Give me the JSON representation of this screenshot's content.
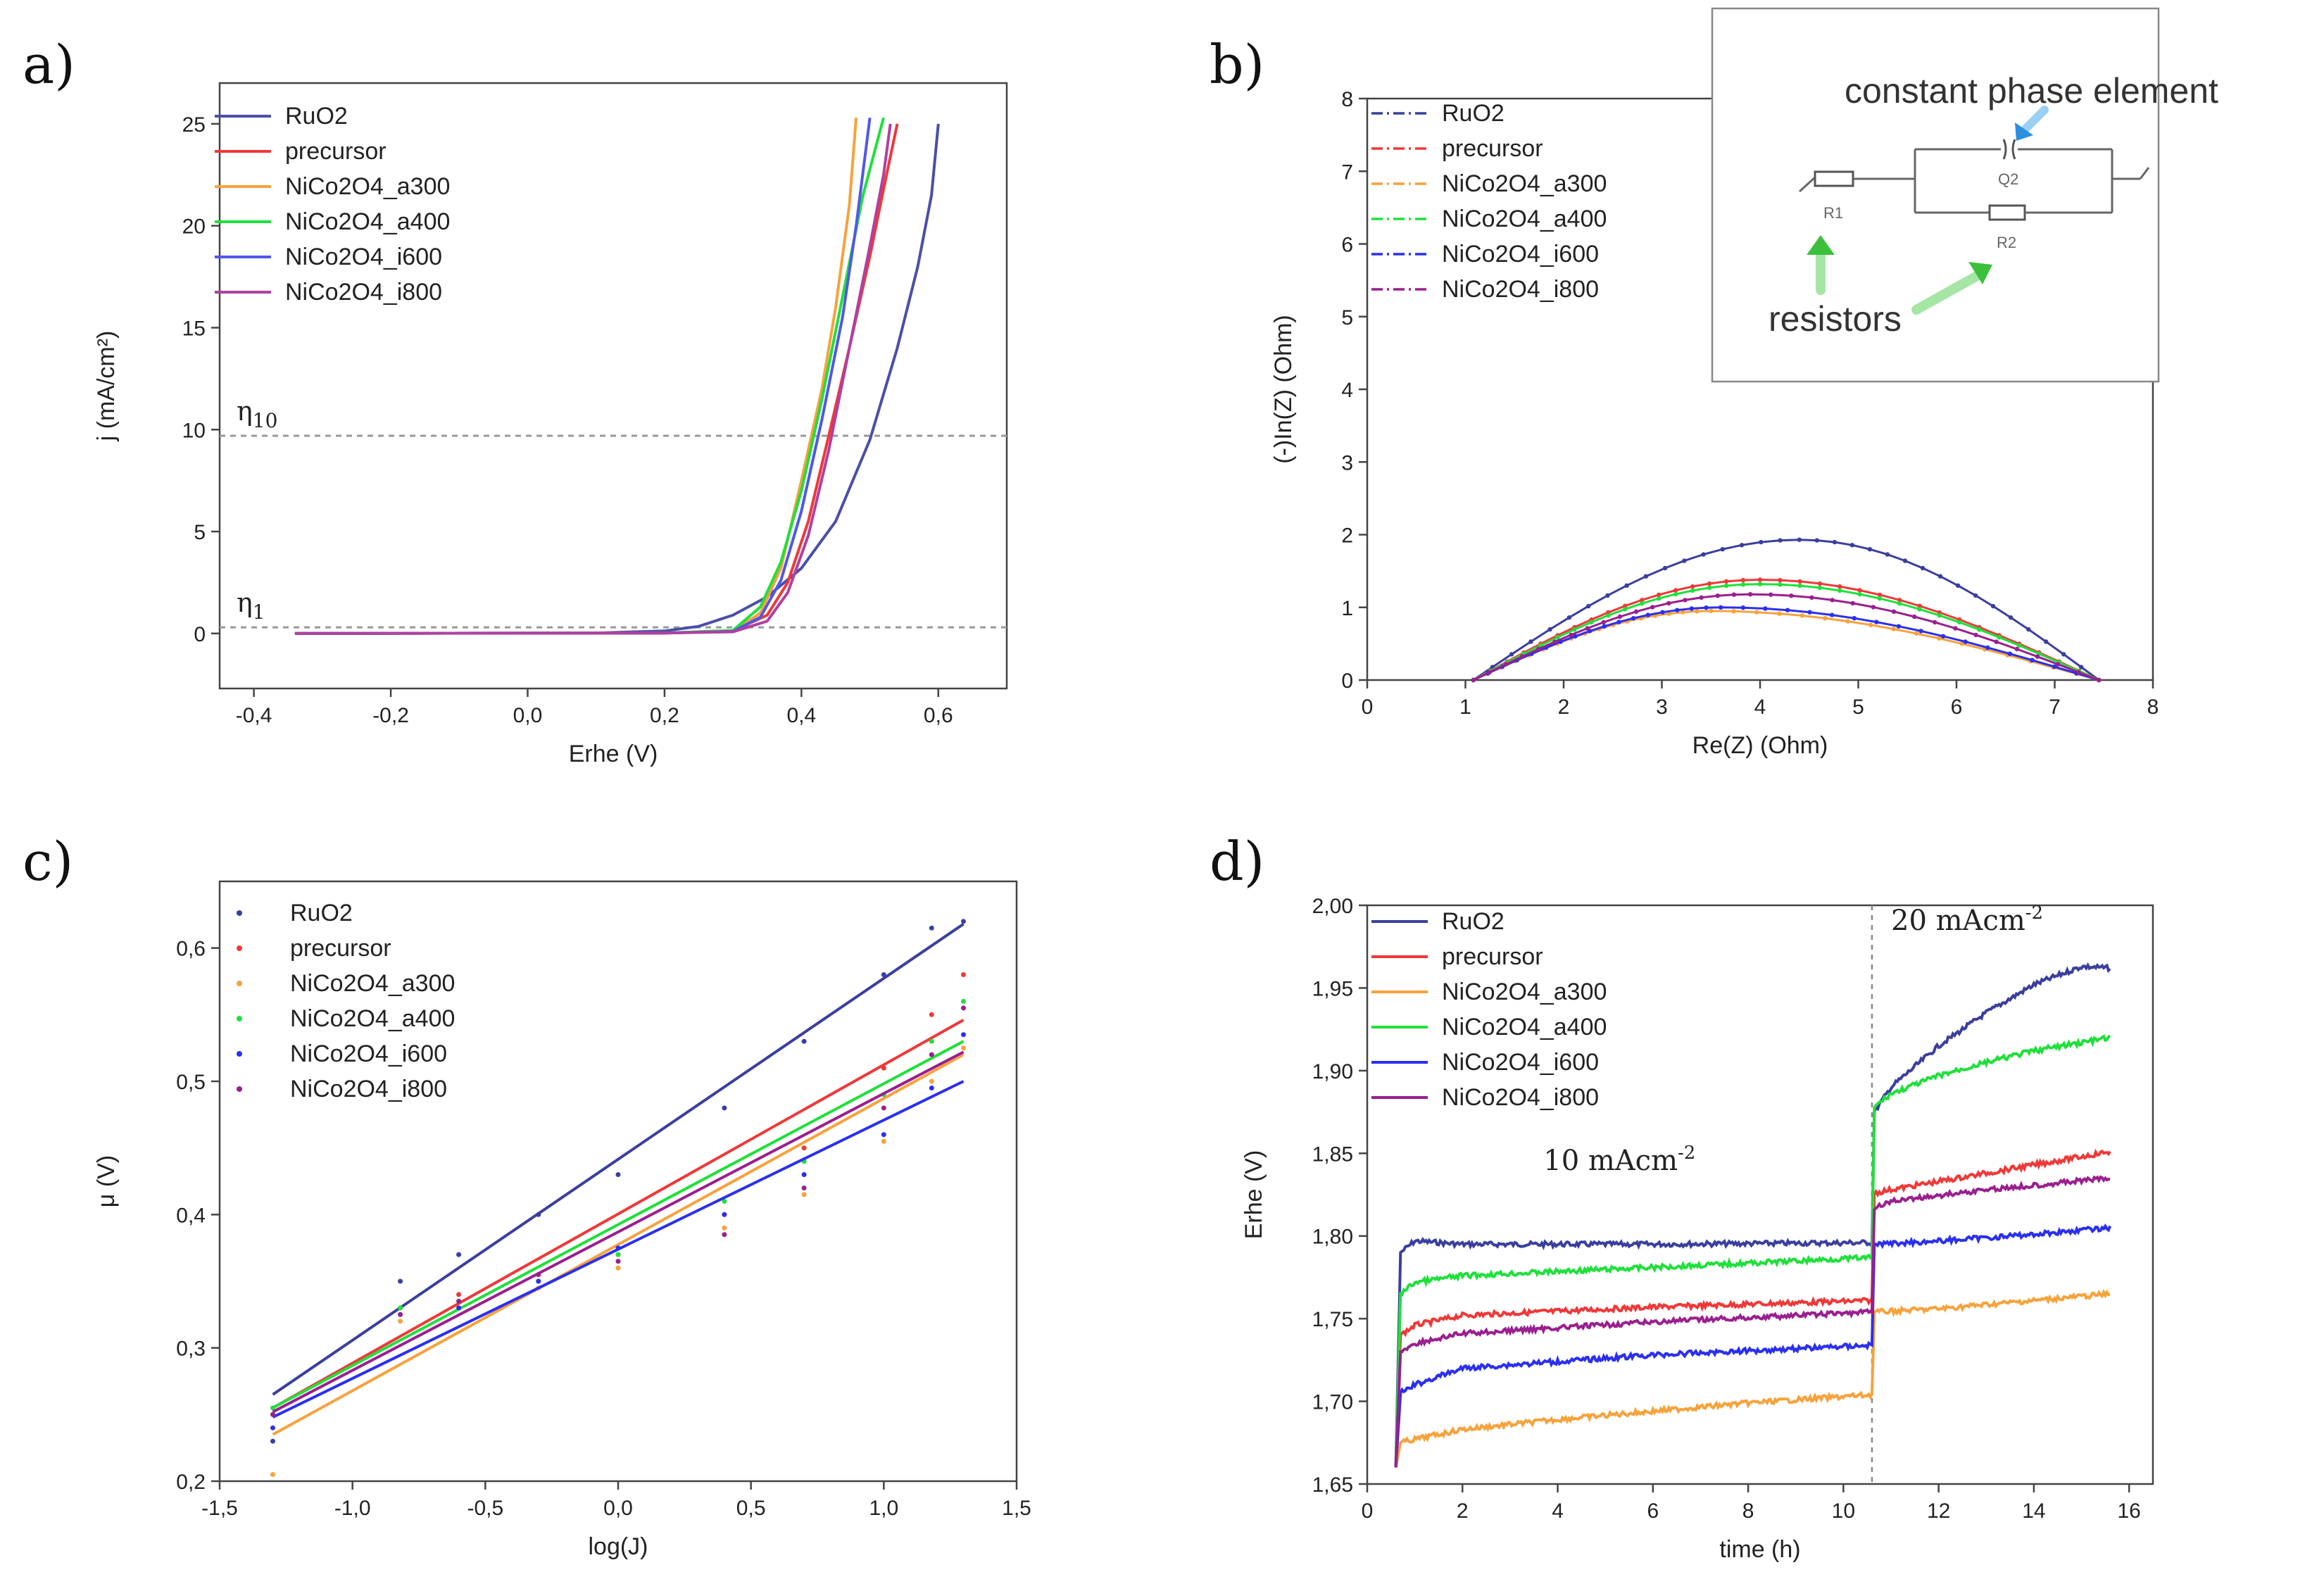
{
  "colors": {
    "RuO2": "#3a3f9e",
    "precursor": "#f03838",
    "NiCo2O4_a300": "#f7a23c",
    "NiCo2O4_a400": "#1fe03a",
    "NiCo2O4_i600": "#2a2ff0",
    "NiCo2O4_i800": "#9a1f8f",
    "a_RuO2": "#4a4fa8",
    "a_i600": "#5058e8",
    "a_i800": "#b040a0"
  },
  "chart_data": [
    {
      "panel": "a)",
      "type": "line",
      "xlabel": "Erhe (V)",
      "ylabel": "j (mA/cm²)",
      "xlim": [
        -0.45,
        0.7
      ],
      "ylim": [
        -2.7,
        27
      ],
      "xticks": [
        "-0,4",
        "-0,2",
        "0,0",
        "0,2",
        "0,4",
        "0,6"
      ],
      "xtick_values": [
        -0.4,
        -0.2,
        0.0,
        0.2,
        0.4,
        0.6
      ],
      "yticks": [
        "0",
        "5",
        "10",
        "15",
        "20",
        "25"
      ],
      "ytick_values": [
        0,
        5,
        10,
        15,
        20,
        25
      ],
      "legend": "top-left",
      "reference_lines": [
        {
          "label": "η",
          "subscript": "10",
          "y": 9.7
        },
        {
          "label": "η",
          "subscript": "1",
          "y": 0.3
        }
      ],
      "series": [
        {
          "name": "RuO2",
          "color_key": "a_RuO2",
          "points": [
            [
              -0.34,
              0
            ],
            [
              0.1,
              0.02
            ],
            [
              0.2,
              0.12
            ],
            [
              0.25,
              0.35
            ],
            [
              0.3,
              0.9
            ],
            [
              0.35,
              1.8
            ],
            [
              0.4,
              3.2
            ],
            [
              0.45,
              5.5
            ],
            [
              0.5,
              9.5
            ],
            [
              0.54,
              14
            ],
            [
              0.57,
              18
            ],
            [
              0.59,
              21.5
            ],
            [
              0.6,
              25
            ]
          ]
        },
        {
          "name": "precursor",
          "color_key": "precursor",
          "points": [
            [
              -0.34,
              0
            ],
            [
              0.2,
              0.02
            ],
            [
              0.3,
              0.12
            ],
            [
              0.35,
              0.9
            ],
            [
              0.38,
              2.5
            ],
            [
              0.41,
              5.5
            ],
            [
              0.44,
              9.7
            ],
            [
              0.47,
              14
            ],
            [
              0.5,
              18.5
            ],
            [
              0.52,
              21.8
            ],
            [
              0.54,
              25
            ]
          ]
        },
        {
          "name": "NiCo2O4_a300",
          "color_key": "NiCo2O4_a300",
          "points": [
            [
              -0.34,
              0
            ],
            [
              0.2,
              0.02
            ],
            [
              0.3,
              0.12
            ],
            [
              0.34,
              1
            ],
            [
              0.37,
              3.2
            ],
            [
              0.4,
              7.5
            ],
            [
              0.43,
              12
            ],
            [
              0.45,
              16
            ],
            [
              0.47,
              21
            ],
            [
              0.48,
              25.3
            ]
          ]
        },
        {
          "name": "NiCo2O4_a400",
          "color_key": "NiCo2O4_a400",
          "points": [
            [
              -0.34,
              0
            ],
            [
              0.2,
              0.02
            ],
            [
              0.3,
              0.15
            ],
            [
              0.34,
              1.3
            ],
            [
              0.37,
              3.5
            ],
            [
              0.4,
              7
            ],
            [
              0.43,
              11.5
            ],
            [
              0.46,
              16.5
            ],
            [
              0.49,
              21.5
            ],
            [
              0.52,
              25.3
            ]
          ]
        },
        {
          "name": "NiCo2O4_i600",
          "color_key": "a_i600",
          "points": [
            [
              -0.34,
              0
            ],
            [
              0.2,
              0.02
            ],
            [
              0.3,
              0.1
            ],
            [
              0.34,
              0.8
            ],
            [
              0.37,
              2.6
            ],
            [
              0.4,
              6
            ],
            [
              0.43,
              10.5
            ],
            [
              0.46,
              15.5
            ],
            [
              0.48,
              20
            ],
            [
              0.5,
              25.3
            ]
          ]
        },
        {
          "name": "NiCo2O4_i800",
          "color_key": "a_i800",
          "points": [
            [
              -0.34,
              0
            ],
            [
              0.2,
              0.02
            ],
            [
              0.3,
              0.08
            ],
            [
              0.35,
              0.6
            ],
            [
              0.38,
              2
            ],
            [
              0.41,
              4.8
            ],
            [
              0.44,
              9
            ],
            [
              0.47,
              14
            ],
            [
              0.5,
              19
            ],
            [
              0.52,
              22.5
            ],
            [
              0.53,
              25
            ]
          ]
        }
      ]
    },
    {
      "panel": "b)",
      "type": "line",
      "xlabel": "Re(Z) (Ohm)",
      "ylabel": "(-)In(Z) (Ohm)",
      "xlim": [
        0,
        8
      ],
      "ylim": [
        0,
        8
      ],
      "xticks": [
        "0",
        "1",
        "2",
        "3",
        "4",
        "5",
        "6",
        "7",
        "8"
      ],
      "xtick_values": [
        0,
        1,
        2,
        3,
        4,
        5,
        6,
        7,
        8
      ],
      "yticks": [
        "0",
        "1",
        "2",
        "3",
        "4",
        "5",
        "6",
        "7",
        "8"
      ],
      "ytick_values": [
        0,
        1,
        2,
        3,
        4,
        5,
        6,
        7,
        8
      ],
      "legend": "top-left",
      "semicircles": [
        {
          "name": "RuO2",
          "color_key": "RuO2",
          "x_start": 1.08,
          "x_end": 7.45,
          "peak_x": 4.4,
          "height": 1.93
        },
        {
          "name": "precursor",
          "color_key": "precursor",
          "x_start": 1.08,
          "x_end": 7.45,
          "peak_x": 4.0,
          "height": 1.38
        },
        {
          "name": "NiCo2O4_a300",
          "color_key": "NiCo2O4_a300",
          "x_start": 1.08,
          "x_end": 7.45,
          "peak_x": 3.5,
          "height": 0.95
        },
        {
          "name": "NiCo2O4_a400",
          "color_key": "NiCo2O4_a400",
          "x_start": 1.08,
          "x_end": 7.45,
          "peak_x": 4.0,
          "height": 1.32
        },
        {
          "name": "NiCo2O4_i600",
          "color_key": "NiCo2O4_i600",
          "x_start": 1.08,
          "x_end": 7.45,
          "peak_x": 3.6,
          "height": 1.0
        },
        {
          "name": "NiCo2O4_i800",
          "color_key": "NiCo2O4_i800",
          "x_start": 1.08,
          "x_end": 7.45,
          "peak_x": 3.9,
          "height": 1.18
        }
      ],
      "inset": {
        "title": "constant phase element",
        "label_resistors": "resistors",
        "components": [
          "R1",
          "Q2",
          "R2"
        ]
      }
    },
    {
      "panel": "c)",
      "type": "scatter",
      "xlabel": "log(J)",
      "ylabel": "μ (V)",
      "xlim": [
        -1.5,
        1.5
      ],
      "ylim": [
        0.2,
        0.65
      ],
      "xticks": [
        "-1,5",
        "-1,0",
        "-0,5",
        "0,0",
        "0,5",
        "1,0",
        "1,5"
      ],
      "xtick_values": [
        -1.5,
        -1.0,
        -0.5,
        0.0,
        0.5,
        1.0,
        1.5
      ],
      "yticks": [
        "0,2",
        "0,3",
        "0,4",
        "0,5",
        "0,6"
      ],
      "ytick_values": [
        0.2,
        0.3,
        0.4,
        0.5,
        0.6
      ],
      "legend": "top-left",
      "x": [
        -1.3,
        -0.82,
        -0.6,
        -0.3,
        0.0,
        0.4,
        0.7,
        1.0,
        1.18,
        1.3
      ],
      "series": [
        {
          "name": "RuO2",
          "color_key": "RuO2",
          "values": [
            0.23,
            0.35,
            0.37,
            0.4,
            0.43,
            0.48,
            0.53,
            0.58,
            0.615,
            0.62
          ],
          "fit": [
            [
              -1.3,
              0.265
            ],
            [
              1.3,
              0.618
            ]
          ]
        },
        {
          "name": "precursor",
          "color_key": "precursor",
          "values": [
            0.25,
            0.33,
            0.34,
            0.355,
            0.37,
            0.4,
            0.45,
            0.51,
            0.55,
            0.58
          ],
          "fit": [
            [
              -1.3,
              0.255
            ],
            [
              1.3,
              0.546
            ]
          ]
        },
        {
          "name": "NiCo2O4_a300",
          "color_key": "NiCo2O4_a300",
          "values": [
            0.205,
            0.32,
            0.33,
            0.345,
            0.36,
            0.39,
            0.415,
            0.455,
            0.5,
            0.525
          ],
          "fit": [
            [
              -1.3,
              0.235
            ],
            [
              1.3,
              0.52
            ]
          ]
        },
        {
          "name": "NiCo2O4_a400",
          "color_key": "NiCo2O4_a400",
          "values": [
            0.255,
            0.33,
            0.335,
            0.35,
            0.37,
            0.41,
            0.44,
            0.49,
            0.53,
            0.56
          ],
          "fit": [
            [
              -1.3,
              0.255
            ],
            [
              1.3,
              0.53
            ]
          ]
        },
        {
          "name": "NiCo2O4_i600",
          "color_key": "NiCo2O4_i600",
          "values": [
            0.24,
            0.325,
            0.33,
            0.35,
            0.375,
            0.4,
            0.43,
            0.46,
            0.495,
            0.535
          ],
          "fit": [
            [
              -1.3,
              0.248
            ],
            [
              1.3,
              0.5
            ]
          ]
        },
        {
          "name": "NiCo2O4_i800",
          "color_key": "NiCo2O4_i800",
          "values": [
            0.25,
            0.325,
            0.335,
            0.355,
            0.365,
            0.385,
            0.42,
            0.48,
            0.52,
            0.555
          ],
          "fit": [
            [
              -1.3,
              0.252
            ],
            [
              1.3,
              0.522
            ]
          ]
        }
      ]
    },
    {
      "panel": "d)",
      "type": "line",
      "xlabel": "time (h)",
      "ylabel": "Erhe (V)",
      "xlim": [
        0,
        16.5
      ],
      "ylim": [
        1.65,
        2.0
      ],
      "xticks": [
        "0",
        "2",
        "4",
        "6",
        "8",
        "10",
        "12",
        "14",
        "16"
      ],
      "xtick_values": [
        0,
        2,
        4,
        6,
        8,
        10,
        12,
        14,
        16
      ],
      "yticks": [
        "1,65",
        "1,70",
        "1,75",
        "1,80",
        "1,85",
        "1,90",
        "1,95",
        "2,00"
      ],
      "ytick_values": [
        1.65,
        1.7,
        1.75,
        1.8,
        1.85,
        1.9,
        1.95,
        2.0
      ],
      "legend": "top-left",
      "switch_time": 10.6,
      "annotations": [
        {
          "text": "10 mAcm",
          "sup": "-2",
          "x": 3.7,
          "y": 1.84
        },
        {
          "text": "20 mAcm",
          "sup": "-2",
          "x": 11.0,
          "y": 1.985
        }
      ],
      "series": [
        {
          "name": "RuO2",
          "color_key": "RuO2",
          "points": [
            [
              0.6,
              1.66
            ],
            [
              0.7,
              1.79
            ],
            [
              1.0,
              1.797
            ],
            [
              2,
              1.795
            ],
            [
              6,
              1.795
            ],
            [
              10.6,
              1.796
            ],
            [
              10.65,
              1.875
            ],
            [
              11,
              1.89
            ],
            [
              12,
              1.915
            ],
            [
              13,
              1.935
            ],
            [
              14,
              1.952
            ],
            [
              15,
              1.963
            ],
            [
              15.6,
              1.962
            ]
          ]
        },
        {
          "name": "precursor",
          "color_key": "precursor",
          "points": [
            [
              0.6,
              1.66
            ],
            [
              0.7,
              1.74
            ],
            [
              1.0,
              1.746
            ],
            [
              2,
              1.752
            ],
            [
              6,
              1.757
            ],
            [
              10.6,
              1.761
            ],
            [
              10.65,
              1.826
            ],
            [
              11,
              1.828
            ],
            [
              13,
              1.838
            ],
            [
              15.6,
              1.851
            ]
          ]
        },
        {
          "name": "NiCo2O4_a300",
          "color_key": "NiCo2O4_a300",
          "points": [
            [
              0.6,
              1.66
            ],
            [
              0.7,
              1.675
            ],
            [
              1.0,
              1.677
            ],
            [
              2,
              1.683
            ],
            [
              4,
              1.689
            ],
            [
              6,
              1.694
            ],
            [
              8,
              1.699
            ],
            [
              10.6,
              1.704
            ],
            [
              10.65,
              1.754
            ],
            [
              12,
              1.756
            ],
            [
              14,
              1.761
            ],
            [
              15.6,
              1.765
            ]
          ]
        },
        {
          "name": "NiCo2O4_a400",
          "color_key": "NiCo2O4_a400",
          "points": [
            [
              0.6,
              1.66
            ],
            [
              0.7,
              1.765
            ],
            [
              1.0,
              1.772
            ],
            [
              2,
              1.776
            ],
            [
              6,
              1.781
            ],
            [
              10.6,
              1.787
            ],
            [
              10.65,
              1.878
            ],
            [
              11,
              1.886
            ],
            [
              12,
              1.897
            ],
            [
              13,
              1.905
            ],
            [
              14,
              1.912
            ],
            [
              15.6,
              1.92
            ]
          ]
        },
        {
          "name": "NiCo2O4_i600",
          "color_key": "NiCo2O4_i600",
          "points": [
            [
              0.6,
              1.66
            ],
            [
              0.7,
              1.705
            ],
            [
              1.0,
              1.71
            ],
            [
              2,
              1.72
            ],
            [
              6,
              1.728
            ],
            [
              10.6,
              1.734
            ],
            [
              10.65,
              1.795
            ],
            [
              12,
              1.797
            ],
            [
              14,
              1.801
            ],
            [
              15.6,
              1.805
            ]
          ]
        },
        {
          "name": "NiCo2O4_i800",
          "color_key": "NiCo2O4_i800",
          "points": [
            [
              0.6,
              1.66
            ],
            [
              0.7,
              1.73
            ],
            [
              1.0,
              1.735
            ],
            [
              2,
              1.741
            ],
            [
              6,
              1.748
            ],
            [
              10.6,
              1.754
            ],
            [
              10.65,
              1.817
            ],
            [
              11,
              1.821
            ],
            [
              13,
              1.828
            ],
            [
              15.6,
              1.835
            ]
          ]
        }
      ]
    }
  ]
}
